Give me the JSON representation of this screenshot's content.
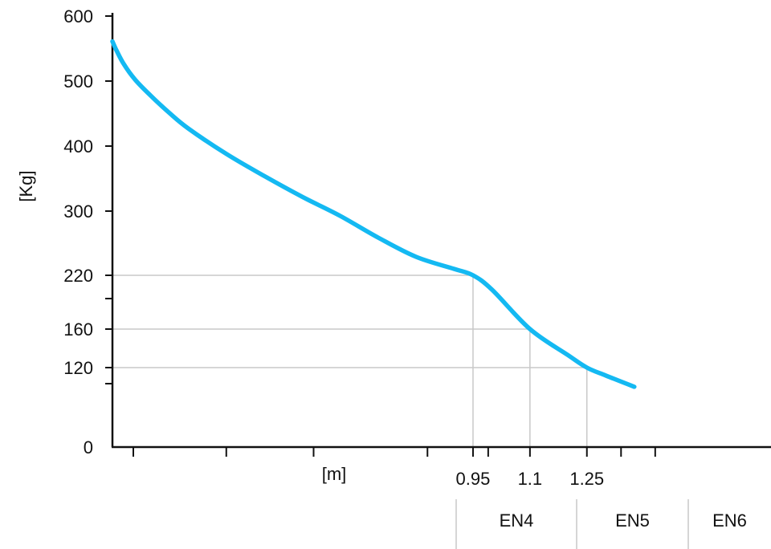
{
  "chart_data": {
    "type": "line",
    "ylabel": "[Kg]",
    "xlabel": "[m]",
    "y_ticks": [
      {
        "value": 0,
        "label": "0"
      },
      {
        "value": 120,
        "label": "120"
      },
      {
        "value": 160,
        "label": "160"
      },
      {
        "value": 220,
        "label": "220"
      },
      {
        "value": 300,
        "label": "300"
      },
      {
        "value": 400,
        "label": "400"
      },
      {
        "value": 500,
        "label": "500"
      },
      {
        "value": 600,
        "label": "600"
      }
    ],
    "y_minor_ticks": [
      100,
      200
    ],
    "x_ticks": [
      {
        "value": 0.95,
        "label": "0.95"
      },
      {
        "value": 1.1,
        "label": "1.1"
      },
      {
        "value": 1.25,
        "label": "1.25"
      }
    ],
    "x_minor_ticks": [
      0.055,
      0.3,
      0.53,
      0.83,
      0.99,
      1.34,
      1.43
    ],
    "xlim": [
      0.0,
      1.38
    ],
    "ylim": [
      0,
      600
    ],
    "series": [
      {
        "color": "#14b9f2",
        "points": [
          [
            0.0,
            561
          ],
          [
            0.01,
            548
          ],
          [
            0.03,
            526
          ],
          [
            0.06,
            502
          ],
          [
            0.1,
            478
          ],
          [
            0.15,
            451
          ],
          [
            0.2,
            427
          ],
          [
            0.3,
            388
          ],
          [
            0.4,
            354
          ],
          [
            0.5,
            322
          ],
          [
            0.6,
            294
          ],
          [
            0.7,
            267
          ],
          [
            0.8,
            243
          ],
          [
            0.9,
            228
          ],
          [
            0.95,
            220
          ],
          [
            1.0,
            204
          ],
          [
            1.1,
            160
          ],
          [
            1.2,
            133
          ],
          [
            1.25,
            120
          ],
          [
            1.3,
            108
          ],
          [
            1.375,
            91
          ]
        ]
      }
    ],
    "reference_lines": [
      {
        "x": 0.95,
        "y": 220
      },
      {
        "x": 1.1,
        "y": 160
      },
      {
        "x": 1.25,
        "y": 120
      }
    ],
    "classes": [
      "EN4",
      "EN5",
      "EN6"
    ],
    "grid": false,
    "colors": {
      "curve": "#14b9f2",
      "guide": "#c8c8c8",
      "axis": "#111111"
    }
  }
}
